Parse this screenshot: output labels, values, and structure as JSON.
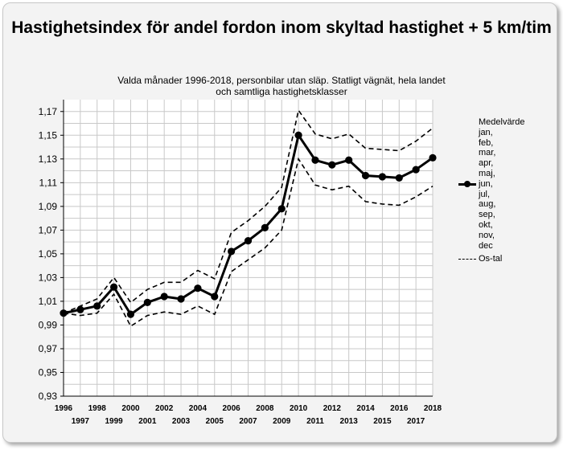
{
  "title": "Hastighetsindex för andel fordon inom skyltad hastighet + 5 km/tim",
  "subtitle": "Valda månader 1996-2018, personbilar utan släp. Statligt vägnät, hela landet och samtliga hastighetsklasser",
  "legend": {
    "title": "Medelvärde",
    "months": [
      "jan,",
      "feb,",
      "mar,",
      "apr,",
      "maj,",
      "jun,",
      "jul,",
      "aug,",
      "sep,",
      "okt,",
      "nov,",
      "dec"
    ],
    "os_label": "Os-tal"
  },
  "colors": {
    "line": "#000000",
    "grid": "#c8c8c8",
    "plot_bg": "#ffffff",
    "frame_bg": "#f3f3f3"
  },
  "chart_data": {
    "type": "line",
    "x": [
      1996,
      1997,
      1998,
      1999,
      2000,
      2001,
      2002,
      2003,
      2004,
      2005,
      2006,
      2007,
      2008,
      2009,
      2010,
      2011,
      2012,
      2013,
      2014,
      2015,
      2016,
      2017,
      2018
    ],
    "x_tick_labels": [
      "1996",
      "1997",
      "1998",
      "1999",
      "2000",
      "2001",
      "2002",
      "2003",
      "2004",
      "2005",
      "2006",
      "2007",
      "2008",
      "2009",
      "2010",
      "2011",
      "2012",
      "2013",
      "2014",
      "2015",
      "2016",
      "2017",
      "2018"
    ],
    "y_tick_labels": [
      "0,93",
      "0,95",
      "0,97",
      "0,99",
      "1,01",
      "1,03",
      "1,05",
      "1,07",
      "1,09",
      "1,11",
      "1,13",
      "1,15",
      "1,17"
    ],
    "ylim": [
      0.93,
      1.18
    ],
    "grid": true,
    "legend_position": "right",
    "series": [
      {
        "name": "Medelvärde jan, feb, mar, apr, maj, jun, jul, aug, sep, okt, nov, dec",
        "style": "solid-markers",
        "values": [
          1.0,
          1.003,
          1.006,
          1.022,
          0.999,
          1.009,
          1.014,
          1.012,
          1.021,
          1.014,
          1.052,
          1.061,
          1.072,
          1.088,
          1.15,
          1.129,
          1.125,
          1.129,
          1.116,
          1.115,
          1.114,
          1.121,
          1.131
        ]
      },
      {
        "name": "Os-tal",
        "style": "dashed",
        "values": [
          1.0,
          1.006,
          1.012,
          1.03,
          1.009,
          1.02,
          1.026,
          1.026,
          1.036,
          1.029,
          1.068,
          1.078,
          1.09,
          1.106,
          1.171,
          1.151,
          1.147,
          1.151,
          1.139,
          1.138,
          1.137,
          1.145,
          1.156
        ]
      },
      {
        "name": "Os-tal",
        "style": "dashed",
        "values": [
          1.0,
          0.998,
          1.0,
          1.016,
          0.989,
          0.998,
          1.001,
          0.999,
          1.006,
          0.999,
          1.035,
          1.045,
          1.055,
          1.07,
          1.13,
          1.108,
          1.104,
          1.107,
          1.094,
          1.092,
          1.091,
          1.098,
          1.107
        ]
      }
    ]
  }
}
